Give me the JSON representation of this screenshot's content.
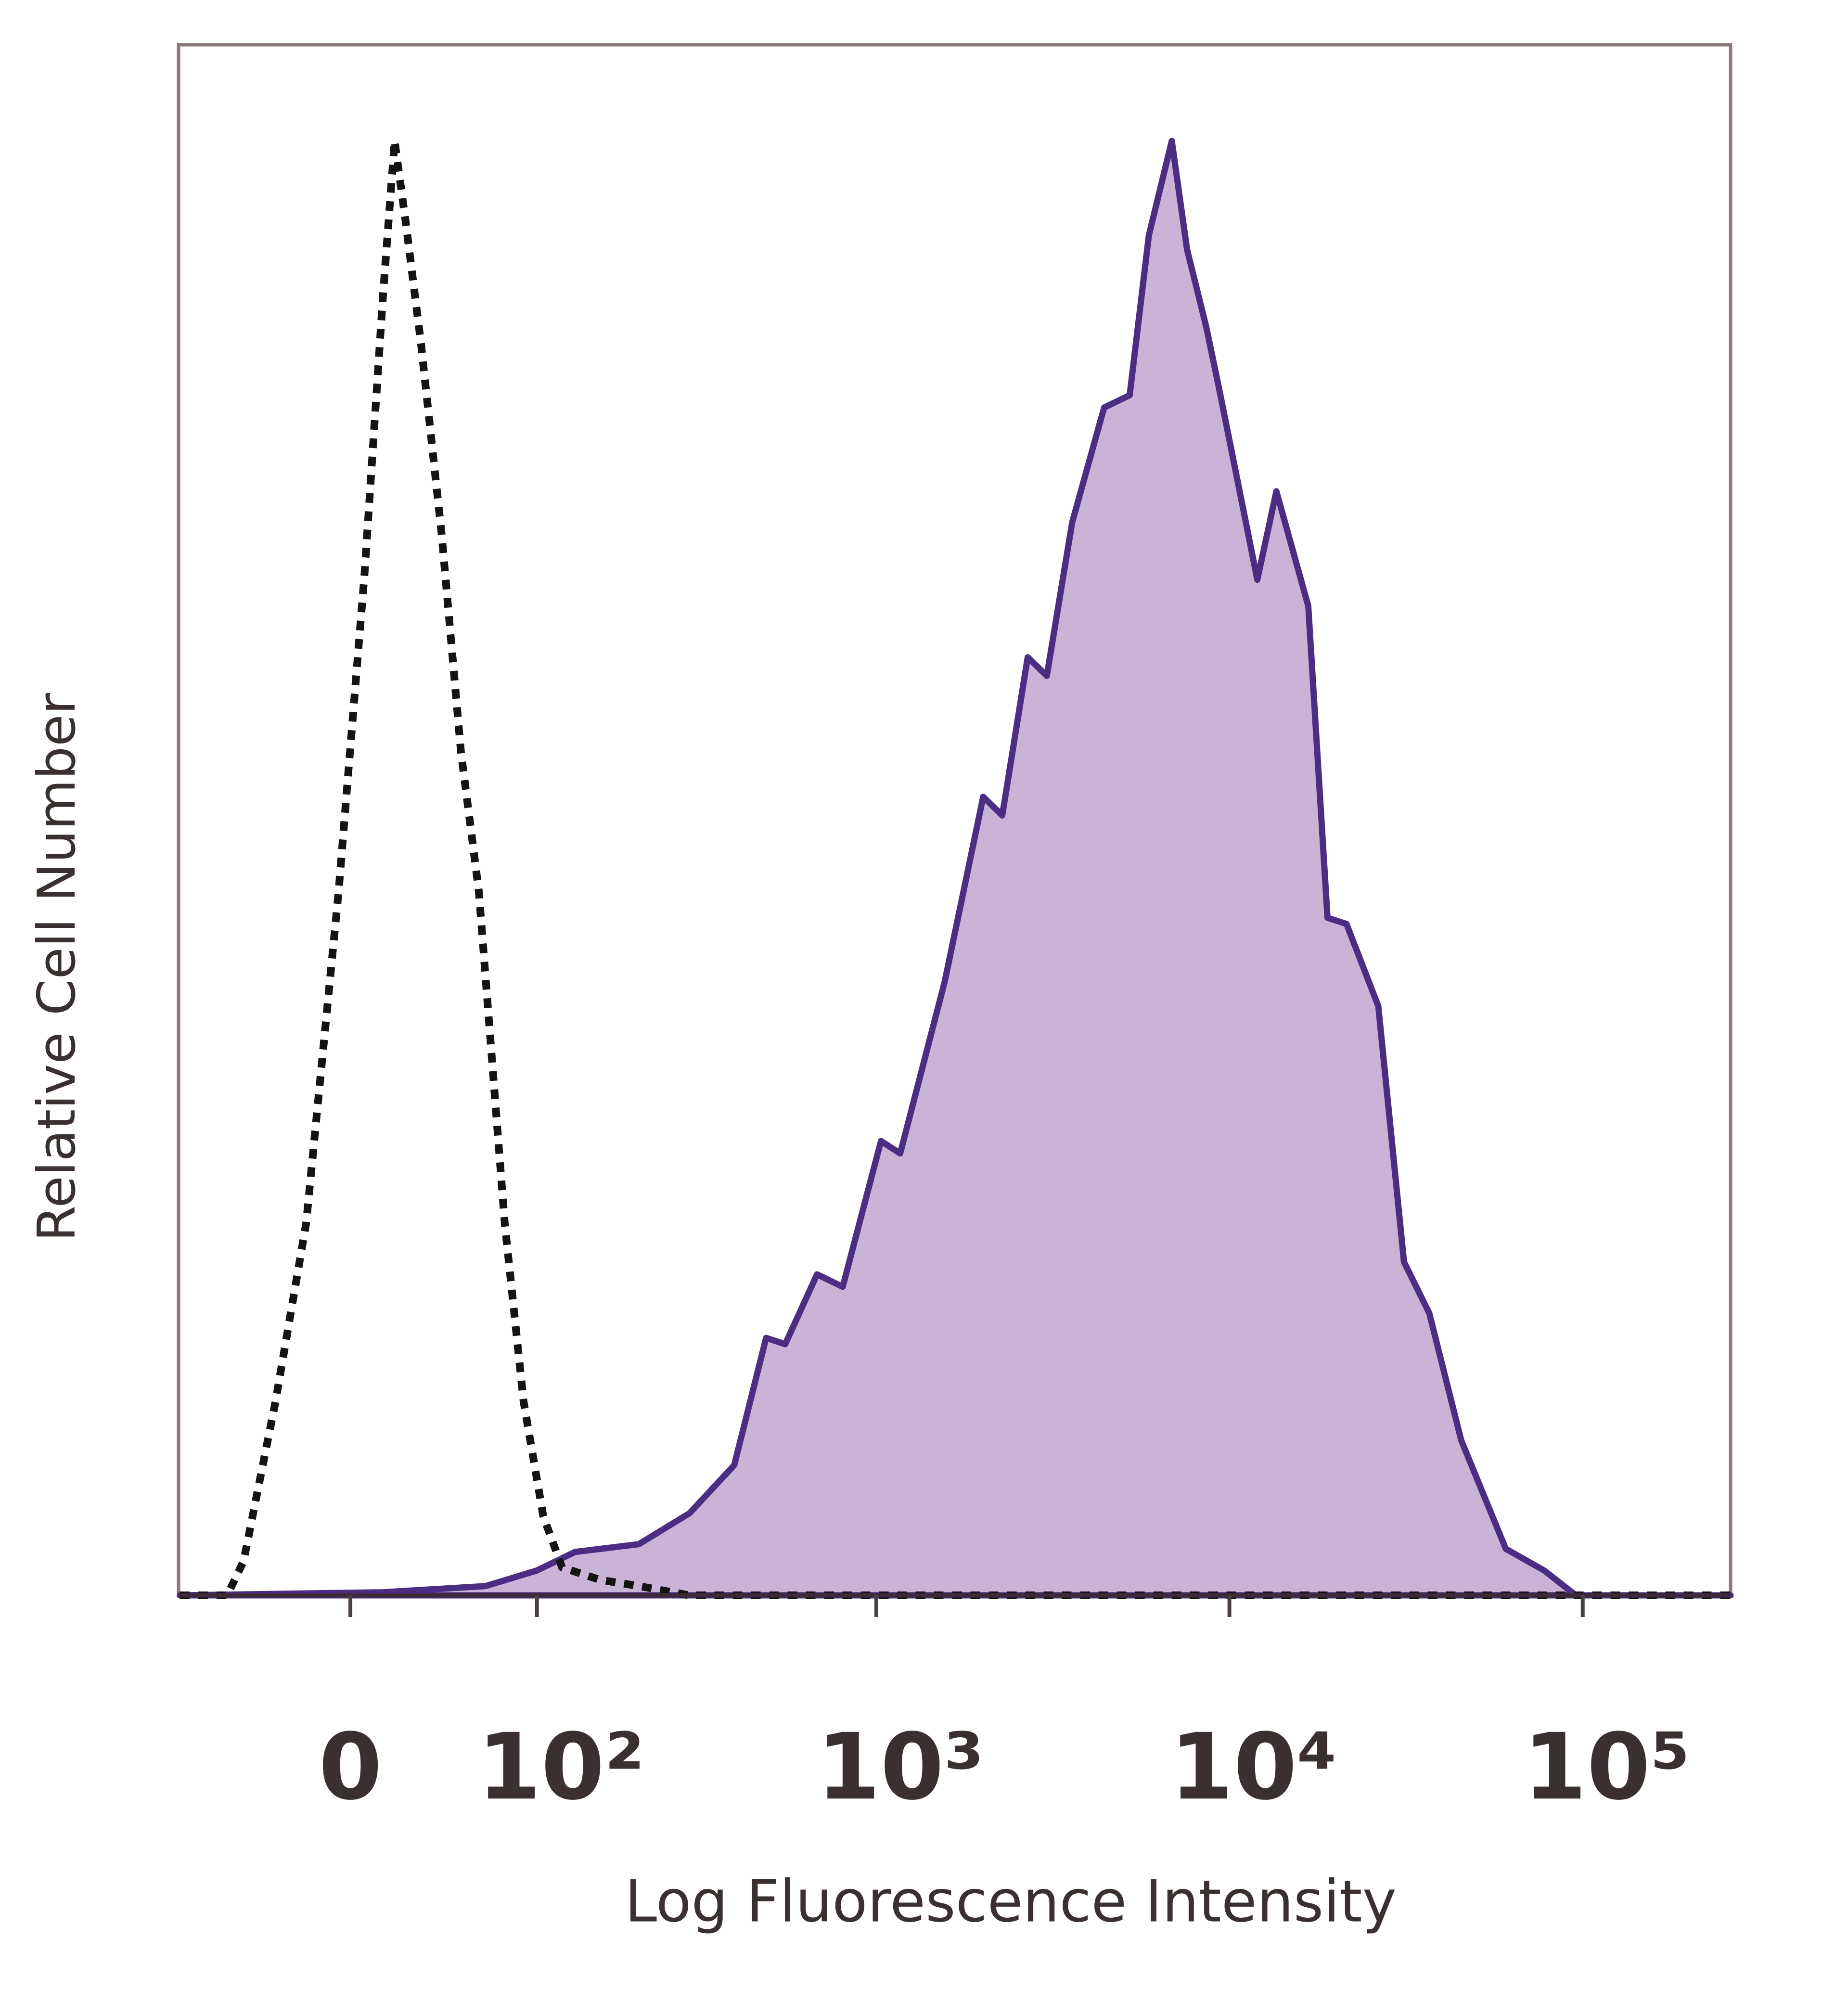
{
  "chart_data": {
    "type": "line",
    "x_label": "Log Fluorescence Intensity",
    "y_label": "Relative Cell Number",
    "xscale": "biexponential",
    "xlim": [
      -89,
      262144
    ],
    "ylim": [
      0,
      100
    ],
    "xticks": [
      0,
      {
        "value": 100,
        "label": "10²"
      },
      {
        "value": 1000,
        "label": "10³"
      },
      {
        "value": 10000,
        "label": "10⁴"
      },
      {
        "value": 100000,
        "label": "10⁵"
      }
    ],
    "series": [
      {
        "color": "#4b2e83",
        "fill": "#c9b3d7",
        "dashed": false,
        "x": [
          -88,
          14,
          65,
          100,
          133,
          208,
          293,
          394,
          486,
          551,
          679,
          803,
          1031,
          1169,
          1564,
          2009,
          2275,
          2685,
          3042,
          3588,
          4420,
          5220,
          5915,
          6870,
          7586,
          8600,
          9334,
          10582,
          11993,
          13579,
          16718,
          18948,
          21450,
          26390,
          31200,
          36790,
          45300,
          60580,
          77800,
          95680,
          262144
        ],
        "values": [
          0,
          0.2,
          0.6,
          1.6,
          2.8,
          3.3,
          5.3,
          8.4,
          16.6,
          16.2,
          20.7,
          19.9,
          29.3,
          28.5,
          39.6,
          51.5,
          50.3,
          60.5,
          59.3,
          69.2,
          76.6,
          77.4,
          87.7,
          93.8,
          86.8,
          81.8,
          77.9,
          71.7,
          65.5,
          71.2,
          63.8,
          43.7,
          43.3,
          38.0,
          21.5,
          18.2,
          10.0,
          3.0,
          1.6,
          0,
          0
        ]
      },
      {
        "color": "#141414",
        "fill": null,
        "dashed": true,
        "x": [
          -88,
          -58,
          -49,
          -33,
          -19,
          -5,
          6,
          14,
          19,
          24,
          31,
          41,
          51,
          61,
          77,
          90,
          105,
          121,
          159,
          208,
          293,
          262144
        ],
        "values": [
          0,
          0,
          2.2,
          12.5,
          24.0,
          45.4,
          65.9,
          84.0,
          93.8,
          88.5,
          80.7,
          68.4,
          54.4,
          45.4,
          24.0,
          12.5,
          5.1,
          1.8,
          1.0,
          0.6,
          0,
          0
        ]
      }
    ]
  }
}
